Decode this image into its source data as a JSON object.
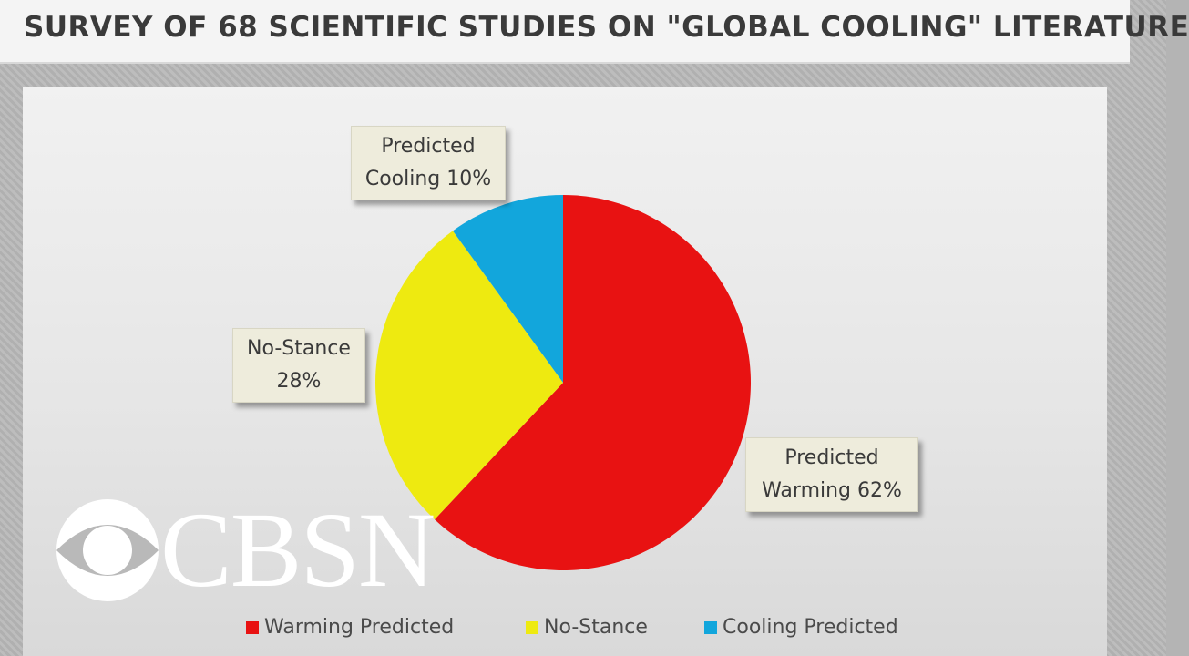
{
  "banner": {
    "title": "SURVEY OF 68 SCIENTIFIC STUDIES ON \"GLOBAL COOLING\" LITERATURE"
  },
  "logo": "CBSN",
  "chart_data": {
    "type": "pie",
    "categories": [
      "Warming Predicted",
      "No-Stance",
      "Cooling Predicted"
    ],
    "values": [
      62,
      28,
      10
    ],
    "value_labels": [
      "Predicted Warming 62%",
      "No-Stance 28%",
      "Predicted Cooling 10%"
    ],
    "colors": [
      "#e81212",
      "#eeea10",
      "#12a6dc"
    ],
    "legend": "bottom"
  }
}
